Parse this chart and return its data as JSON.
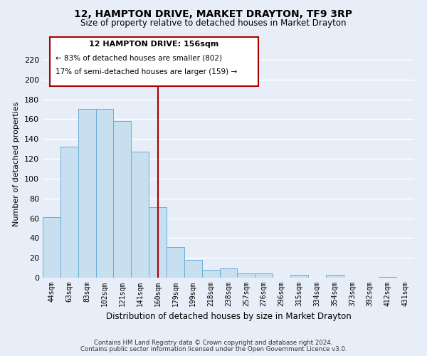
{
  "title": "12, HAMPTON DRIVE, MARKET DRAYTON, TF9 3RP",
  "subtitle": "Size of property relative to detached houses in Market Drayton",
  "xlabel": "Distribution of detached houses by size in Market Drayton",
  "ylabel": "Number of detached properties",
  "categories": [
    "44sqm",
    "63sqm",
    "83sqm",
    "102sqm",
    "121sqm",
    "141sqm",
    "160sqm",
    "179sqm",
    "199sqm",
    "218sqm",
    "238sqm",
    "257sqm",
    "276sqm",
    "296sqm",
    "315sqm",
    "334sqm",
    "354sqm",
    "373sqm",
    "392sqm",
    "412sqm",
    "431sqm"
  ],
  "values": [
    61,
    132,
    170,
    170,
    158,
    127,
    71,
    31,
    18,
    8,
    9,
    4,
    4,
    0,
    3,
    0,
    3,
    0,
    0,
    1,
    0
  ],
  "bar_color": "#c8dff0",
  "bar_edge_color": "#6aaed6",
  "highlight_index": 6,
  "highlight_line_color": "#aa0000",
  "ylim": [
    0,
    230
  ],
  "yticks": [
    0,
    20,
    40,
    60,
    80,
    100,
    120,
    140,
    160,
    180,
    200,
    220
  ],
  "annotation_title": "12 HAMPTON DRIVE: 156sqm",
  "annotation_line1": "← 83% of detached houses are smaller (802)",
  "annotation_line2": "17% of semi-detached houses are larger (159) →",
  "annotation_box_color": "#ffffff",
  "annotation_box_edge": "#aa0000",
  "footer_line1": "Contains HM Land Registry data © Crown copyright and database right 2024.",
  "footer_line2": "Contains public sector information licensed under the Open Government Licence v3.0.",
  "background_color": "#e8eef8",
  "grid_color": "#ffffff"
}
